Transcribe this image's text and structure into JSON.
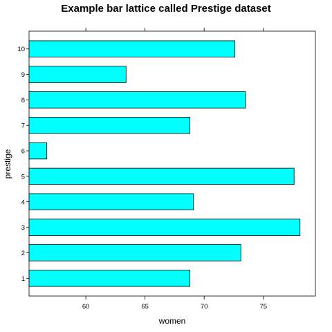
{
  "chart_data": {
    "type": "bar",
    "orientation": "horizontal",
    "title": "Example bar lattice called Prestige dataset",
    "xlabel": "women",
    "ylabel": "prestige",
    "categories": [
      "1",
      "2",
      "3",
      "4",
      "5",
      "6",
      "7",
      "8",
      "9",
      "10"
    ],
    "values": [
      68.8,
      73.1,
      78.1,
      69.1,
      77.6,
      56.7,
      68.8,
      73.5,
      63.4,
      72.6
    ],
    "xlim": [
      55.2,
      79.4
    ],
    "xticks": [
      60,
      65,
      70,
      75
    ],
    "bar_color": "#00ffff",
    "grid": false
  }
}
